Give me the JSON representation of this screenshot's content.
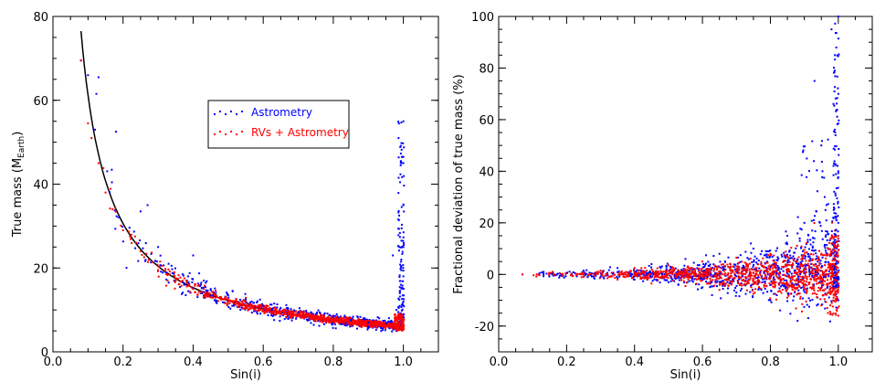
{
  "colors": {
    "astrometry": "#0000ff",
    "rv_astrometry": "#ff0000",
    "curve": "#000000",
    "axes": "#000000"
  },
  "chart_data": [
    {
      "id": "left",
      "type": "scatter",
      "xlabel": "Sin(i)",
      "ylabel": {
        "main": "True mass (M",
        "sub": "Earth",
        "close": ")"
      },
      "xlim": [
        0.0,
        1.1
      ],
      "ylim": [
        0,
        80
      ],
      "xticks": [
        0.0,
        0.2,
        0.4,
        0.6,
        0.8,
        1.0
      ],
      "xtick_labels": [
        "0.0",
        "0.2",
        "0.4",
        "0.6",
        "0.8",
        "1.0"
      ],
      "yticks": [
        0,
        20,
        40,
        60,
        80
      ],
      "ytick_labels": [
        "0",
        "20",
        "40",
        "60",
        "80"
      ],
      "legend": {
        "placement": "upper-middle",
        "entries": [
          "Astrometry",
          "RVs + Astrometry"
        ]
      },
      "curve": {
        "name": "",
        "x": [
          0.08,
          0.1,
          0.12,
          0.15,
          0.2,
          0.25,
          0.3,
          0.4,
          0.5,
          0.6,
          0.7,
          0.8,
          0.9,
          1.0
        ],
        "y": [
          76.5,
          61.0,
          51.0,
          40.8,
          30.6,
          24.5,
          20.4,
          15.3,
          12.2,
          10.2,
          8.7,
          7.6,
          6.8,
          6.1
        ]
      },
      "series": [
        {
          "name": "Astrometry",
          "color": "#0000ff",
          "points": [
            [
              0.08,
              69.5
            ],
            [
              0.1,
              66.0
            ],
            [
              0.12,
              53.0
            ],
            [
              0.13,
              65.5
            ],
            [
              0.18,
              52.5
            ],
            [
              0.25,
              33.5
            ],
            [
              0.27,
              35.0
            ],
            [
              0.3,
              25.0
            ],
            [
              0.33,
              21.0
            ],
            [
              0.37,
              18.5
            ],
            [
              0.4,
              23.0
            ],
            [
              0.43,
              17.0
            ],
            [
              0.45,
              15.0
            ],
            [
              0.5,
              13.5
            ],
            [
              0.55,
              12.5
            ],
            [
              0.6,
              11.0
            ],
            [
              0.65,
              10.5
            ],
            [
              0.7,
              9.5
            ],
            [
              0.75,
              9.0
            ],
            [
              0.8,
              8.3
            ],
            [
              0.85,
              7.5
            ],
            [
              0.9,
              7.0
            ],
            [
              0.95,
              6.8
            ],
            [
              0.97,
              23.0
            ],
            [
              0.99,
              14.0
            ],
            [
              1.0,
              55.0
            ],
            [
              1.0,
              45.0
            ],
            [
              1.0,
              35.0
            ],
            [
              1.0,
              25.0
            ],
            [
              1.0,
              18.0
            ],
            [
              1.0,
              12.0
            ],
            [
              1.0,
              9.0
            ],
            [
              0.98,
              10.0
            ]
          ]
        },
        {
          "name": "RVs + Astrometry",
          "color": "#ff0000",
          "points": [
            [
              0.08,
              69.5
            ],
            [
              0.1,
              54.5
            ],
            [
              0.11,
              51.0
            ],
            [
              0.13,
              45.0
            ],
            [
              0.15,
              38.0
            ],
            [
              0.17,
              34.0
            ],
            [
              0.2,
              29.0
            ],
            [
              0.22,
              27.5
            ],
            [
              0.25,
              24.0
            ],
            [
              0.3,
              19.5
            ],
            [
              0.35,
              17.0
            ],
            [
              0.4,
              15.0
            ],
            [
              0.45,
              13.0
            ],
            [
              0.5,
              12.0
            ],
            [
              0.55,
              10.5
            ],
            [
              0.6,
              10.0
            ],
            [
              0.65,
              9.0
            ],
            [
              0.7,
              8.5
            ],
            [
              0.75,
              8.0
            ],
            [
              0.8,
              7.5
            ],
            [
              0.85,
              7.0
            ],
            [
              0.9,
              6.5
            ],
            [
              0.95,
              6.2
            ],
            [
              0.98,
              6.0
            ],
            [
              1.0,
              5.5
            ],
            [
              1.0,
              7.5
            ]
          ]
        }
      ]
    },
    {
      "id": "right",
      "type": "scatter",
      "xlabel": "Sin(i)",
      "ylabel": "Fractional deviation of true mass (%)",
      "xlim": [
        0.0,
        1.1
      ],
      "ylim": [
        -30,
        100
      ],
      "xticks": [
        0.0,
        0.2,
        0.4,
        0.6,
        0.8,
        1.0
      ],
      "xtick_labels": [
        "0.0",
        "0.2",
        "0.4",
        "0.6",
        "0.8",
        "1.0"
      ],
      "yticks": [
        -20,
        0,
        20,
        40,
        60,
        80,
        100
      ],
      "ytick_labels": [
        "-20",
        "0",
        "20",
        "40",
        "60",
        "80",
        "100"
      ],
      "series": [
        {
          "name": "Astrometry",
          "color": "#0000ff",
          "points": [
            [
              0.07,
              0
            ],
            [
              0.12,
              0.5
            ],
            [
              0.18,
              -0.5
            ],
            [
              0.25,
              1.5
            ],
            [
              0.3,
              -1.0
            ],
            [
              0.35,
              2.5
            ],
            [
              0.4,
              -2.0
            ],
            [
              0.45,
              4.0
            ],
            [
              0.5,
              -3.0
            ],
            [
              0.55,
              6.0
            ],
            [
              0.6,
              -5.0
            ],
            [
              0.65,
              8.0
            ],
            [
              0.7,
              -7.0
            ],
            [
              0.75,
              10.0
            ],
            [
              0.8,
              -10.0
            ],
            [
              0.85,
              15.0
            ],
            [
              0.88,
              -18.0
            ],
            [
              0.9,
              20.0
            ],
            [
              0.93,
              75.0
            ],
            [
              0.95,
              50.0
            ],
            [
              0.96,
              30.0
            ],
            [
              0.98,
              95.0
            ],
            [
              0.99,
              85.0
            ],
            [
              1.0,
              100.0
            ],
            [
              1.0,
              70.0
            ],
            [
              1.0,
              40.0
            ],
            [
              1.0,
              20.0
            ],
            [
              1.0,
              -10.0
            ]
          ]
        },
        {
          "name": "RVs + Astrometry",
          "color": "#ff0000",
          "points": [
            [
              0.07,
              0
            ],
            [
              0.12,
              -0.3
            ],
            [
              0.18,
              0.5
            ],
            [
              0.25,
              -1.0
            ],
            [
              0.3,
              1.5
            ],
            [
              0.35,
              -2.0
            ],
            [
              0.4,
              2.5
            ],
            [
              0.45,
              -3.5
            ],
            [
              0.5,
              3.5
            ],
            [
              0.55,
              -4.5
            ],
            [
              0.6,
              5.0
            ],
            [
              0.65,
              -6.0
            ],
            [
              0.7,
              6.5
            ],
            [
              0.75,
              -7.5
            ],
            [
              0.8,
              8.0
            ],
            [
              0.85,
              -9.0
            ],
            [
              0.9,
              9.5
            ],
            [
              0.95,
              -12.0
            ],
            [
              0.98,
              12.0
            ],
            [
              1.0,
              -16.0
            ],
            [
              1.0,
              15.0
            ],
            [
              1.0,
              5.0
            ],
            [
              1.0,
              -5.0
            ]
          ]
        }
      ]
    }
  ]
}
